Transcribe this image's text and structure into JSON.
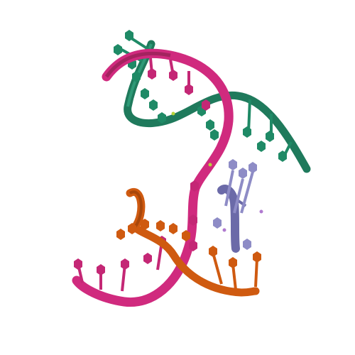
{
  "scene": {
    "description_label": "",
    "colors": {
      "background": "#ffffff",
      "green_strand": "#1f7a5c",
      "green_light": "#2e9a77",
      "pink_strand": "#d02a7e",
      "pink_dark": "#a3235f",
      "orange_strand": "#cf5a10",
      "orange_dark": "#a8470b",
      "purple_strand": "#6b6aa8",
      "purple_light": "#9a98cf",
      "ion_yellow": "#b7d43a",
      "ion_purple": "#b07ad0"
    },
    "icons": [
      "green-rna-strand",
      "pink-rna-strand",
      "orange-rna-strand",
      "purple-rna-strand",
      "ion"
    ]
  }
}
